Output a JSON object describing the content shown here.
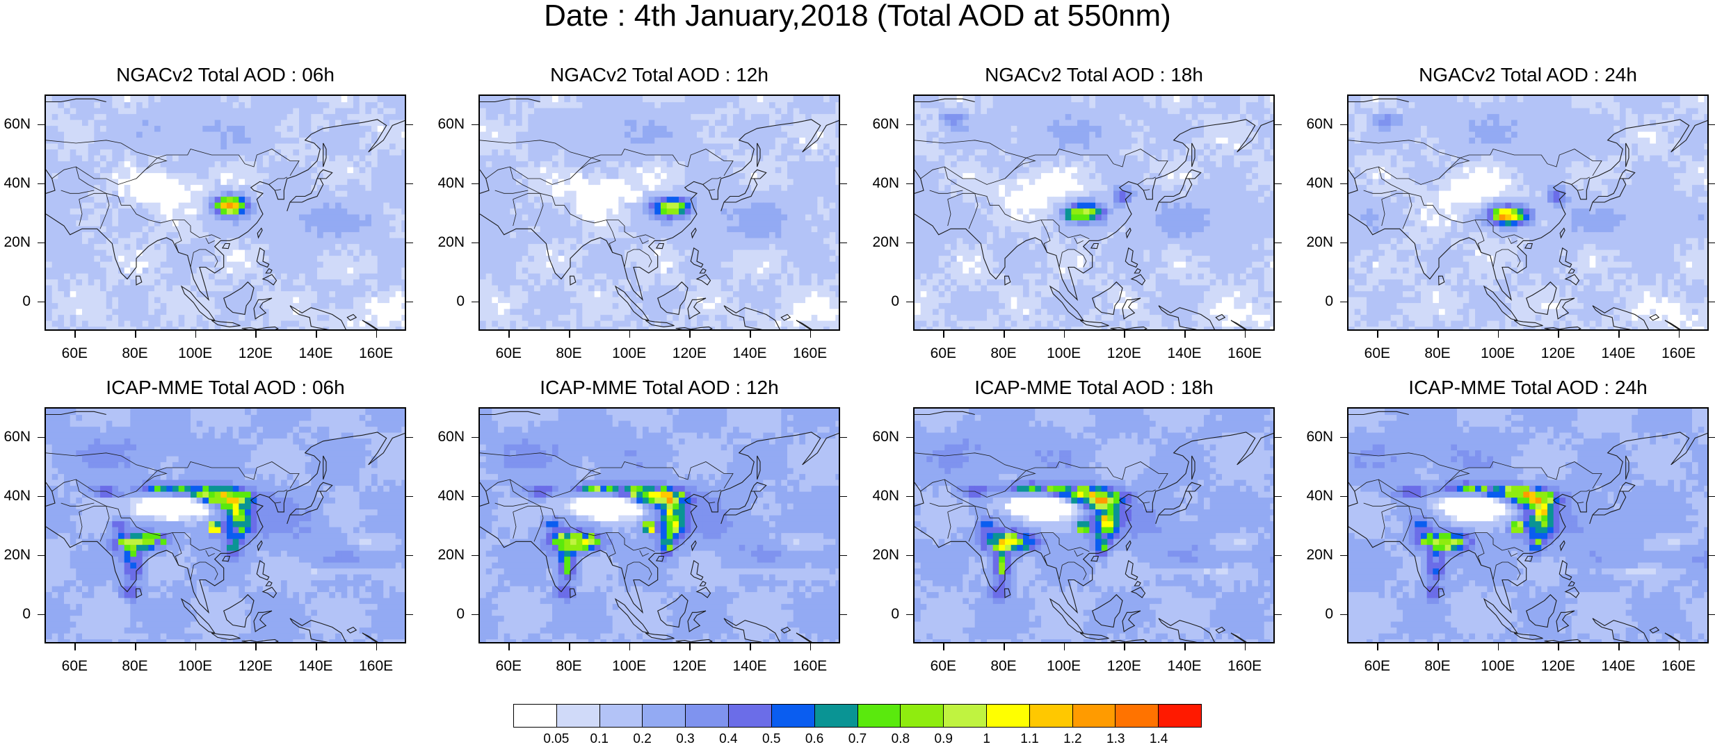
{
  "title": "Date : 4th January,2018 (Total AOD at 550nm)",
  "panels": [
    {
      "title": "NGACv2 Total AOD : 06h",
      "model": "NGACv2",
      "hour": "06h"
    },
    {
      "title": "NGACv2 Total AOD : 12h",
      "model": "NGACv2",
      "hour": "12h"
    },
    {
      "title": "NGACv2 Total AOD : 18h",
      "model": "NGACv2",
      "hour": "18h"
    },
    {
      "title": "NGACv2 Total AOD : 24h",
      "model": "NGACv2",
      "hour": "24h"
    },
    {
      "title": "ICAP-MME Total AOD : 06h",
      "model": "ICAP-MME",
      "hour": "06h"
    },
    {
      "title": "ICAP-MME Total AOD : 12h",
      "model": "ICAP-MME",
      "hour": "12h"
    },
    {
      "title": "ICAP-MME Total AOD : 18h",
      "model": "ICAP-MME",
      "hour": "18h"
    },
    {
      "title": "ICAP-MME Total AOD : 24h",
      "model": "ICAP-MME",
      "hour": "24h"
    }
  ],
  "axes": {
    "lon_ticks": [
      "60E",
      "80E",
      "100E",
      "120E",
      "140E",
      "160E"
    ],
    "lat_ticks": [
      "60N",
      "40N",
      "20N",
      "0"
    ],
    "lon_range": [
      50,
      170
    ],
    "lat_range": [
      -10,
      70
    ]
  },
  "colorbar": {
    "labels": [
      "0.05",
      "0.1",
      "0.2",
      "0.3",
      "0.4",
      "0.5",
      "0.6",
      "0.7",
      "0.8",
      "0.9",
      "1",
      "1.1",
      "1.2",
      "1.3",
      "1.4"
    ],
    "colors": [
      "#ffffff",
      "#d0daf9",
      "#b3c3f7",
      "#93aaf3",
      "#7f93ef",
      "#6b6de8",
      "#0a5df0",
      "#0a9494",
      "#5ae90d",
      "#8fec0f",
      "#c0f340",
      "#ffff00",
      "#ffc800",
      "#ff9b00",
      "#ff7300",
      "#ff1a00"
    ]
  }
}
